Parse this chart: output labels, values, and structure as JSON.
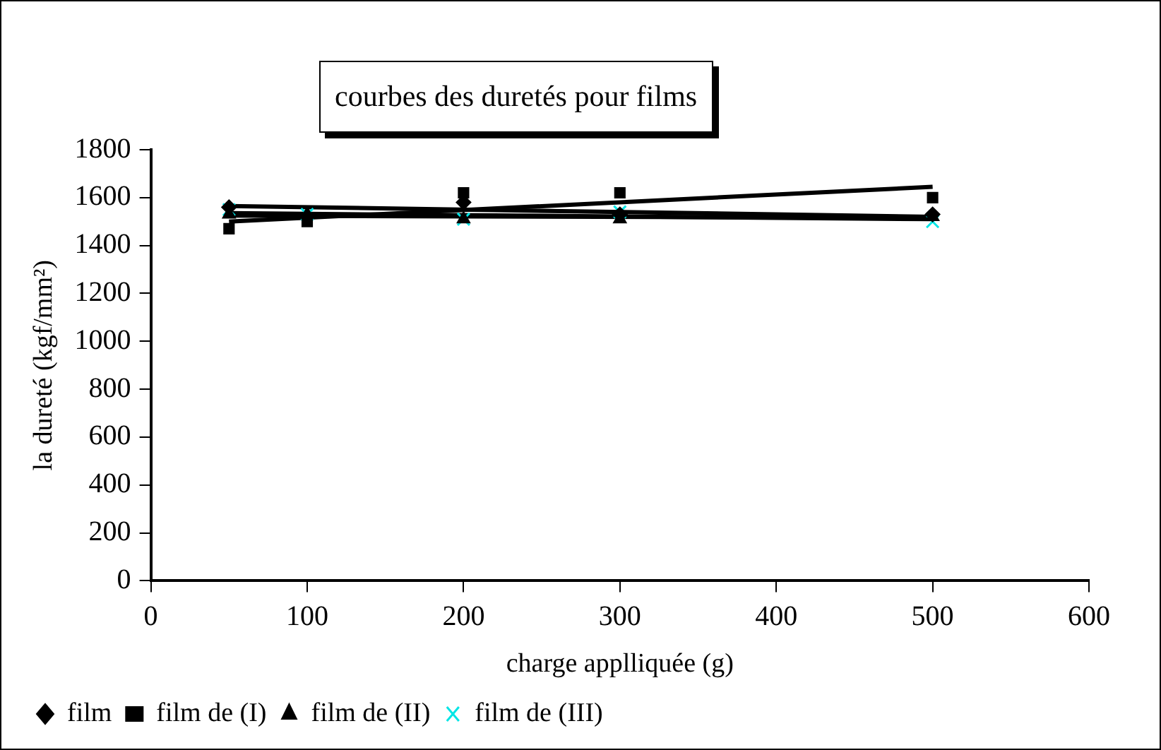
{
  "chart_data": {
    "type": "scatter",
    "title": "courbes des duretés pour films",
    "xlabel": "charge applliquée (g)",
    "ylabel": "la dureté (kgf/mm²)",
    "xlim": [
      0,
      600
    ],
    "xticks": [
      0,
      100,
      200,
      300,
      400,
      500,
      600
    ],
    "ylim": [
      0,
      1800
    ],
    "yticks": [
      0,
      200,
      400,
      600,
      800,
      1000,
      1200,
      1400,
      1600,
      1800
    ],
    "grid": false,
    "legend": "bottom left",
    "series": [
      {
        "name": "film",
        "type": "scatter",
        "marker": "diamond",
        "color": "#000000",
        "x": [
          50,
          100,
          200,
          300,
          500
        ],
        "values": [
          1560,
          null,
          1580,
          1530,
          1530
        ]
      },
      {
        "name": "film de (I)",
        "type": "scatter",
        "marker": "square",
        "color": "#000000",
        "x": [
          50,
          100,
          200,
          300,
          500
        ],
        "values": [
          1470,
          1500,
          1620,
          1620,
          1600
        ]
      },
      {
        "name": "film de (II)",
        "type": "scatter",
        "marker": "triangle",
        "color": "#000000",
        "x": [
          50,
          100,
          200,
          300,
          500
        ],
        "values": [
          1530,
          1530,
          1510,
          1510,
          1520
        ]
      },
      {
        "name": "film de (III)",
        "type": "scatter",
        "marker": "cross",
        "color": "#00e5e5",
        "x": [
          50,
          100,
          200,
          300,
          500
        ],
        "values": [
          1550,
          1530,
          1510,
          1540,
          1500
        ]
      },
      {
        "type": "line",
        "marker": "none",
        "color": "#000000",
        "x": [
          50,
          500
        ],
        "values": [
          1565,
          1520
        ]
      },
      {
        "type": "line",
        "marker": "none",
        "color": "#000000",
        "x": [
          50,
          500
        ],
        "values": [
          1500,
          1645
        ]
      },
      {
        "type": "line",
        "marker": "none",
        "color": "#000000",
        "x": [
          50,
          500
        ],
        "values": [
          1525,
          1515
        ]
      },
      {
        "type": "line",
        "marker": "none",
        "color": "#000000",
        "x": [
          50,
          500
        ],
        "values": [
          1535,
          1510
        ]
      }
    ]
  }
}
